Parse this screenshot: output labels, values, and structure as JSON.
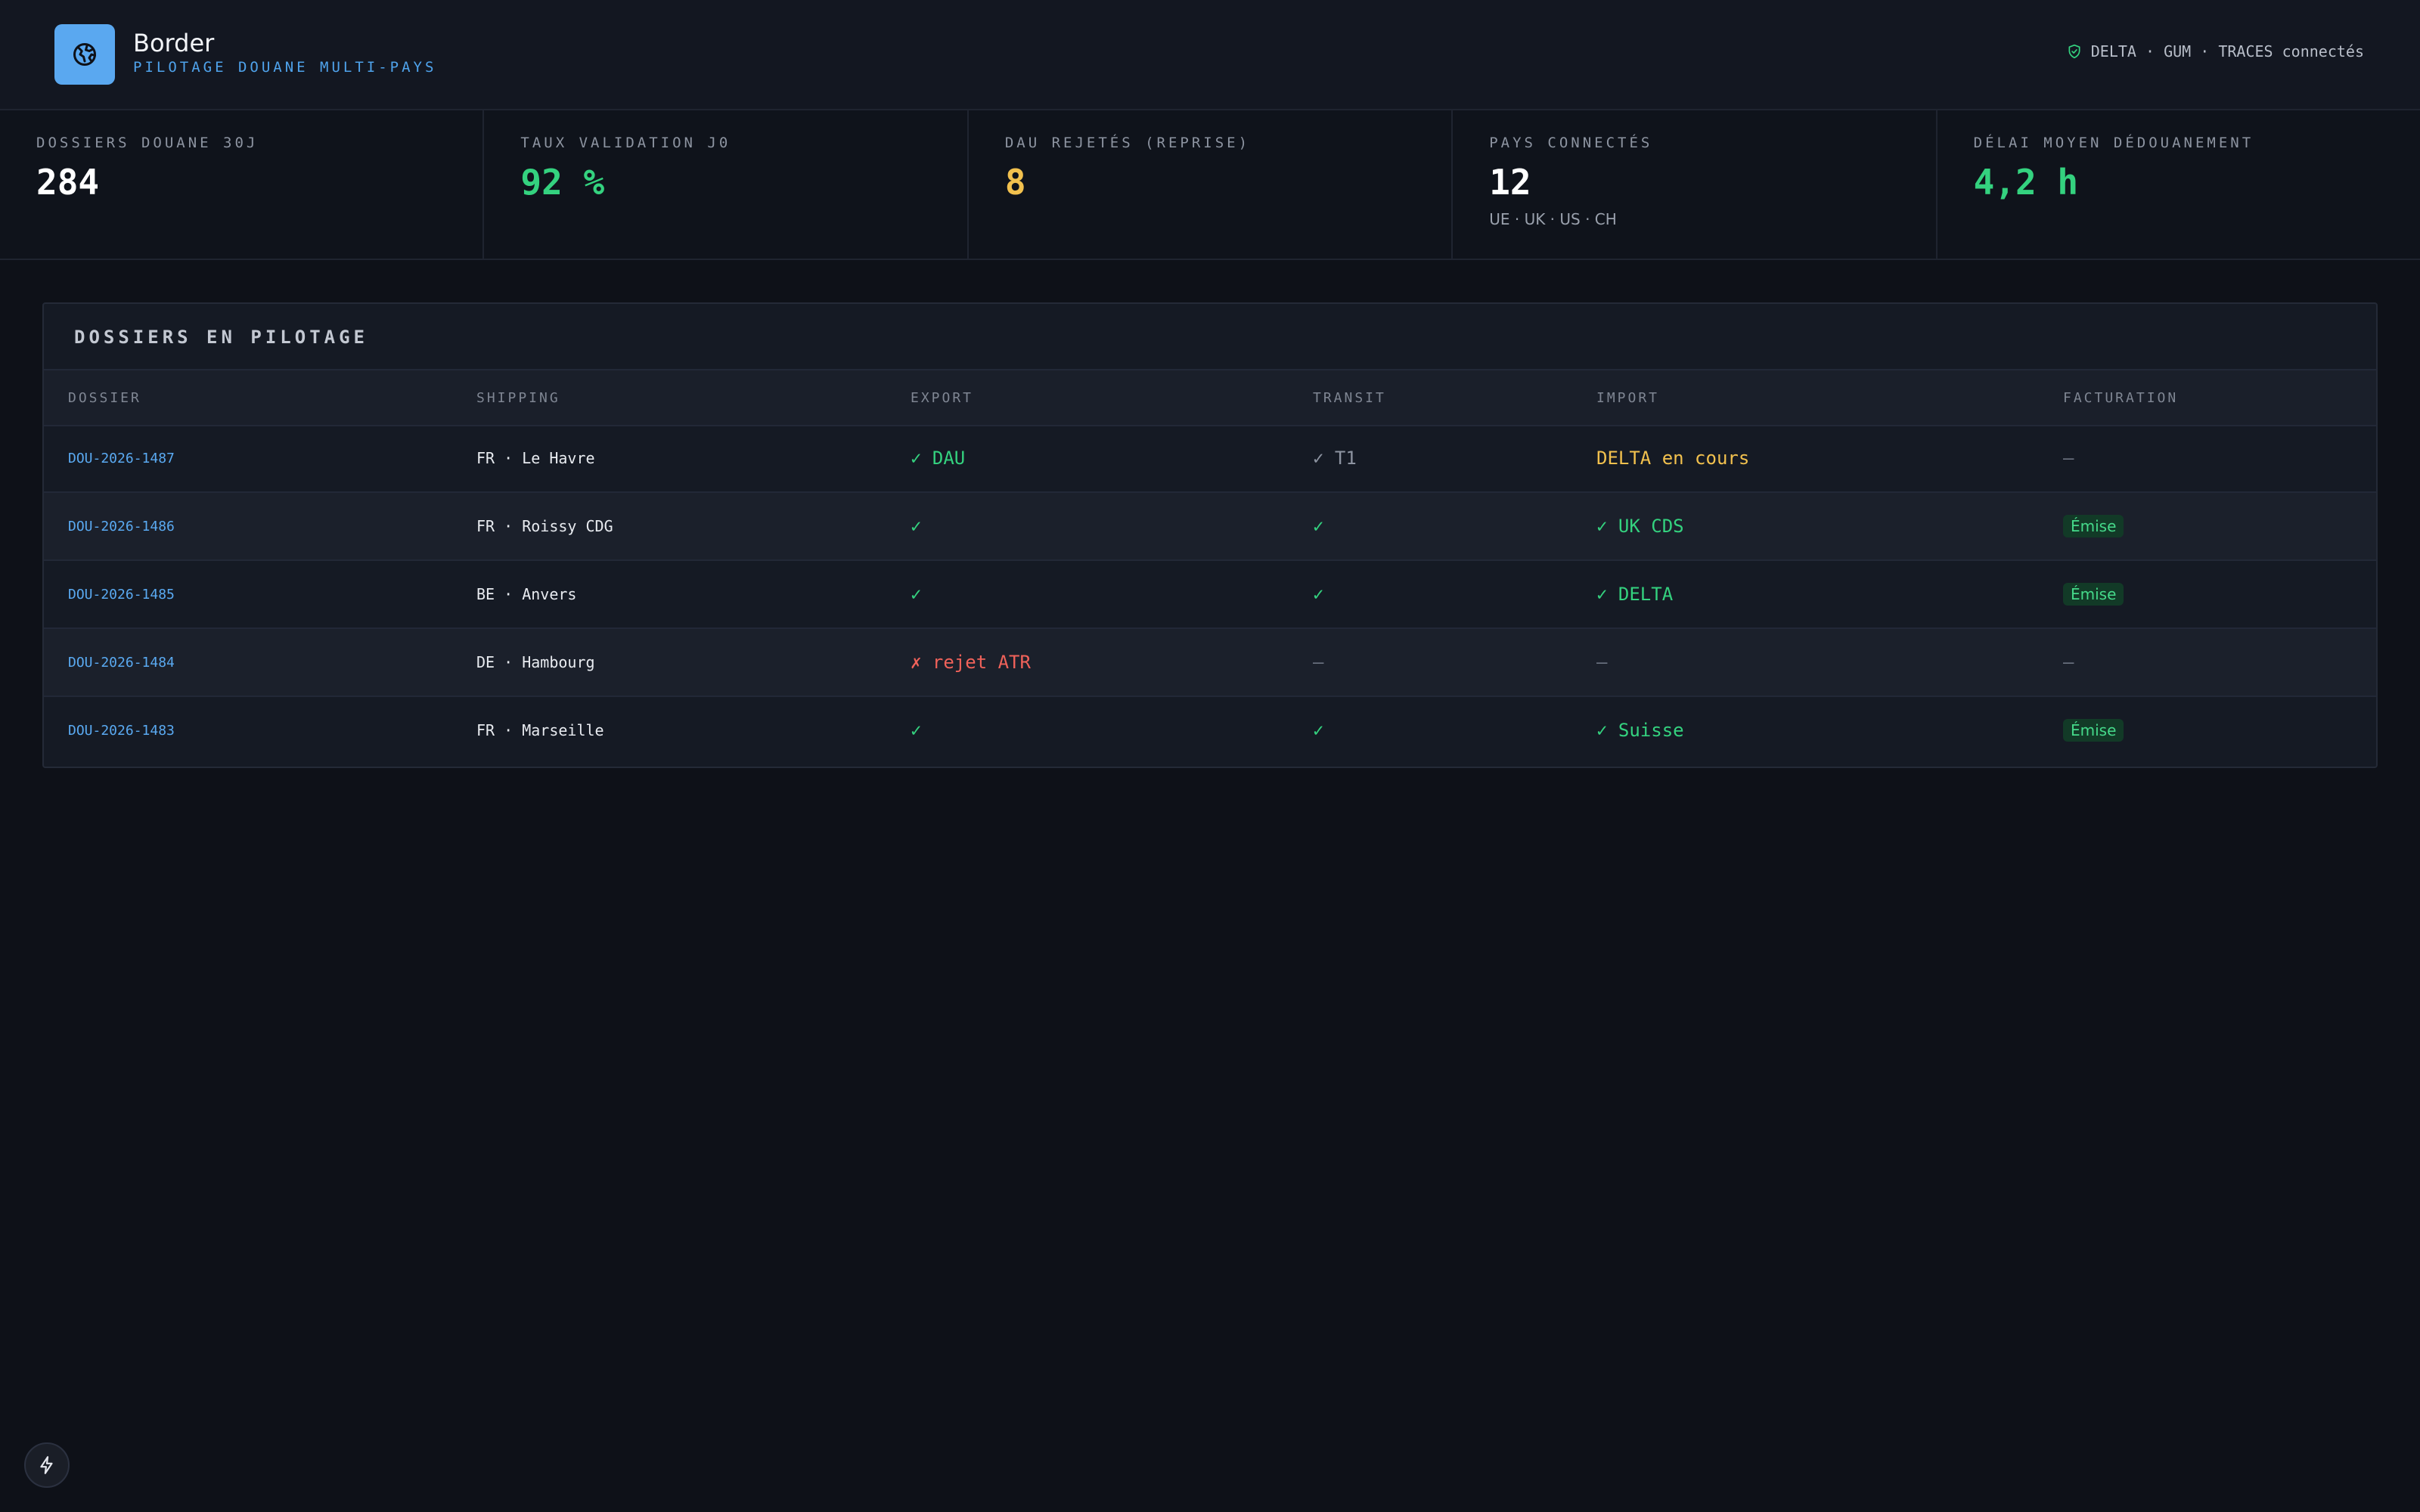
{
  "app": {
    "title": "Border",
    "subtitle": "PILOTAGE DOUANE MULTI-PAYS",
    "connection_status": "DELTA · GUM · TRACES connectés"
  },
  "kpis": [
    {
      "label": "DOSSIERS DOUANE 30J",
      "value": "284",
      "color": "#ffffff"
    },
    {
      "label": "TAUX VALIDATION J0",
      "value": "92 %",
      "color": "#34d27f"
    },
    {
      "label": "DAU REJETÉS (REPRISE)",
      "value": "8",
      "color": "#f2c14e"
    },
    {
      "label": "PAYS CONNECTÉS",
      "value": "12",
      "note": "UE · UK · US · CH",
      "color": "#ffffff"
    },
    {
      "label": "DÉLAI MOYEN DÉDOUANEMENT",
      "value": "4,2 h",
      "color": "#34d27f"
    }
  ],
  "panel": {
    "title": "DOSSIERS EN PILOTAGE",
    "columns": [
      "DOSSIER",
      "SHIPPING",
      "EXPORT",
      "TRANSIT",
      "IMPORT",
      "FACTURATION"
    ],
    "rows": [
      {
        "dossier": "DOU-2026-1487",
        "shipping": "FR · Le Havre",
        "export": "✓ DAU",
        "transit": "✓ T1",
        "import": "DELTA en cours",
        "facturation": "—"
      },
      {
        "dossier": "DOU-2026-1486",
        "shipping": "FR · Roissy CDG",
        "export": "✓",
        "transit": "✓",
        "import": "✓ UK CDS",
        "facturation": "Émise"
      },
      {
        "dossier": "DOU-2026-1485",
        "shipping": "BE · Anvers",
        "export": "✓",
        "transit": "✓",
        "import": "✓ DELTA",
        "facturation": "Émise"
      },
      {
        "dossier": "DOU-2026-1484",
        "shipping": "DE · Hambourg",
        "export": "✗ rejet ATR",
        "transit": "—",
        "import": "—",
        "facturation": "—"
      },
      {
        "dossier": "DOU-2026-1483",
        "shipping": "FR · Marseille",
        "export": "✓",
        "transit": "✓",
        "import": "✓ Suisse",
        "facturation": "Émise"
      }
    ]
  },
  "colors": {
    "accent": "#5aa8f0",
    "ok": "#34d27f",
    "warning": "#f2c14e",
    "error": "#f0625a"
  },
  "icons": {
    "logo": "globe-icon",
    "status": "shield-check-icon",
    "quick_action": "bolt-icon"
  }
}
